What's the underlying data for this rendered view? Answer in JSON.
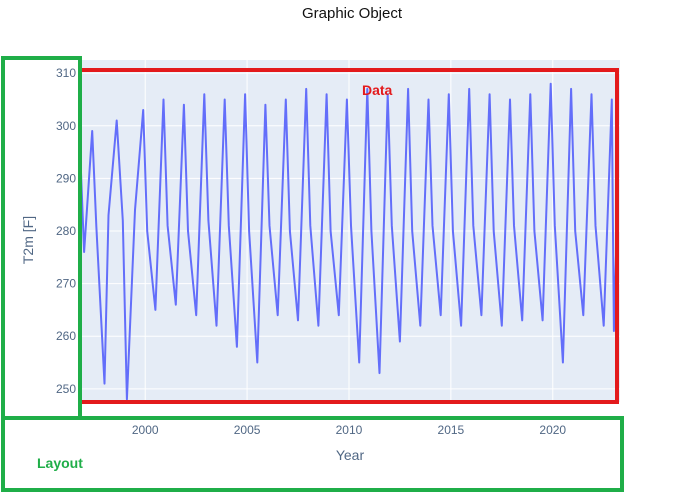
{
  "chart_data": {
    "type": "line",
    "title": "Graphic Object",
    "xlabel": "Year",
    "ylabel": "T2m [F]",
    "xlim": [
      1996.8,
      2023.3
    ],
    "ylim": [
      247.5,
      312.5
    ],
    "xticks": [
      2000,
      2005,
      2010,
      2015,
      2020
    ],
    "yticks": [
      250,
      260,
      270,
      280,
      290,
      300,
      310
    ],
    "grid": true,
    "series": [
      {
        "color": "#636efa",
        "x": [
          1996.8,
          1997.0,
          1997.4,
          1997.6,
          1998.0,
          1998.2,
          1998.6,
          1998.9,
          1999.1,
          1999.5,
          1999.9,
          2000.1,
          2000.5,
          2000.9,
          2001.1,
          2001.5,
          2001.9,
          2002.1,
          2002.5,
          2002.9,
          2003.1,
          2003.5,
          2003.9,
          2004.1,
          2004.5,
          2004.9,
          2005.1,
          2005.5,
          2005.9,
          2006.1,
          2006.5,
          2006.9,
          2007.1,
          2007.5,
          2007.9,
          2008.1,
          2008.5,
          2008.9,
          2009.1,
          2009.5,
          2009.9,
          2010.1,
          2010.5,
          2010.9,
          2011.1,
          2011.5,
          2011.9,
          2012.1,
          2012.5,
          2012.9,
          2013.1,
          2013.5,
          2013.9,
          2014.1,
          2014.5,
          2014.9,
          2015.1,
          2015.5,
          2015.9,
          2016.1,
          2016.5,
          2016.9,
          2017.1,
          2017.5,
          2017.9,
          2018.1,
          2018.5,
          2018.9,
          2019.1,
          2019.5,
          2019.9,
          2020.1,
          2020.5,
          2020.9,
          2021.1,
          2021.5,
          2021.9,
          2022.1,
          2022.5,
          2022.9,
          2023.0,
          2023.2
        ],
        "y": [
          296,
          276,
          299,
          281,
          251,
          283,
          301,
          282,
          248,
          284,
          303,
          280,
          265,
          305,
          281,
          266,
          304,
          280,
          264,
          306,
          282,
          262,
          305,
          281,
          258,
          306,
          280,
          255,
          304,
          281,
          264,
          305,
          280,
          263,
          307,
          281,
          262,
          306,
          280,
          264,
          305,
          281,
          255,
          307,
          280,
          253,
          306,
          281,
          259,
          307,
          280,
          262,
          305,
          281,
          264,
          306,
          280,
          262,
          307,
          281,
          264,
          306,
          280,
          262,
          305,
          281,
          263,
          306,
          280,
          263,
          308,
          281,
          255,
          307,
          280,
          264,
          306,
          281,
          262,
          305,
          261,
          289
        ]
      }
    ],
    "annotations": [
      "Data",
      "Layout"
    ]
  }
}
